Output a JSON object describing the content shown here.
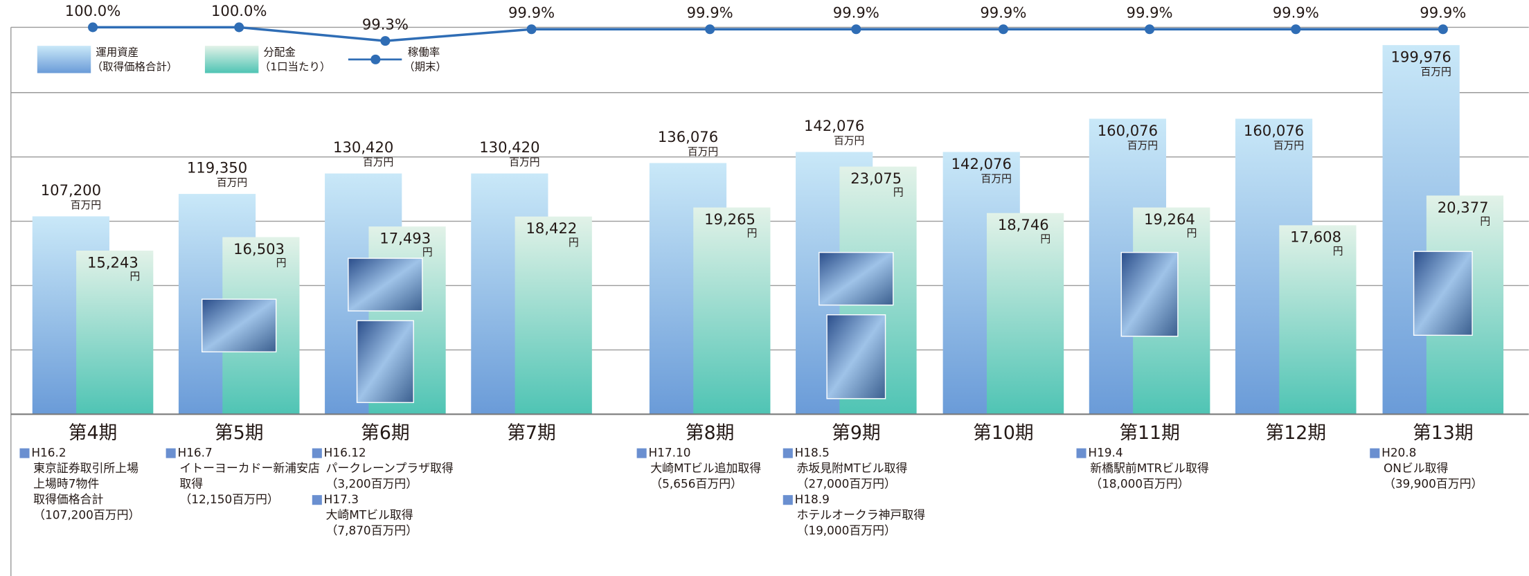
{
  "chart_data": {
    "type": "bar",
    "categories": [
      "第4期",
      "第5期",
      "第6期",
      "第7期",
      "第8期",
      "第9期",
      "第10期",
      "第11期",
      "第12期",
      "第13期"
    ],
    "ylim": [
      0,
      224400
    ],
    "y2lim": [
      0,
      38600
    ],
    "y3lim": [
      98,
      101.4
    ],
    "series": [
      {
        "name": "運用資産",
        "name_note": "（取得価格合計）",
        "unit": "百万円",
        "color": "#6a9bd8",
        "values": [
          107200,
          119350,
          130420,
          130420,
          136076,
          142076,
          142076,
          160076,
          160076,
          199976
        ],
        "value_labels": [
          "107,200",
          "119,350",
          "130,420",
          "130,420",
          "136,076",
          "142,076",
          "142,076",
          "160,076",
          "160,076",
          "199,976"
        ]
      },
      {
        "name": "分配金",
        "name_note": "（1口当たり）",
        "unit": "円",
        "color": "#4fc4b4",
        "axis": "y2",
        "values": [
          15243,
          16503,
          17493,
          18422,
          19265,
          23075,
          18746,
          19264,
          17608,
          20377
        ],
        "value_labels": [
          "15,243",
          "16,503",
          "17,493",
          "18,422",
          "19,265",
          "23,075",
          "18,746",
          "19,264",
          "17,608",
          "20,377"
        ]
      },
      {
        "name": "稼働率",
        "name_note": "（期末）",
        "type": "line",
        "color": "#2f6db5",
        "axis": "y3",
        "values": [
          100,
          100,
          99.3,
          99.9,
          99.9,
          99.9,
          99.9,
          99.9,
          99.9,
          99.9
        ],
        "value_labels": [
          "100.0%",
          "100.0%",
          "99.3%",
          "99.9%",
          "99.9%",
          "99.9%",
          "99.9%",
          "99.9%",
          "99.9%",
          "99.9%"
        ]
      }
    ],
    "notes": [
      [
        {
          "date": "H16.2",
          "lines": [
            "東京証券取引所上場",
            "上場時7物件",
            "取得価格合計",
            "（107,200百万円）"
          ]
        }
      ],
      [
        {
          "date": "H16.7",
          "lines": [
            "イトーヨーカドー新浦安店",
            "取得",
            "（12,150百万円）"
          ]
        }
      ],
      [
        {
          "date": "H16.12",
          "lines": [
            "パークレーンプラザ取得",
            "（3,200百万円）"
          ]
        },
        {
          "date": "H17.3",
          "lines": [
            "大崎MTビル取得",
            "（7,870百万円）"
          ]
        }
      ],
      [],
      [
        {
          "date": "H17.10",
          "lines": [
            "大崎MTビル追加取得",
            "（5,656百万円）"
          ]
        }
      ],
      [
        {
          "date": "H18.5",
          "lines": [
            "赤坂見附MTビル取得",
            "（27,000百万円）"
          ]
        },
        {
          "date": "H18.9",
          "lines": [
            "ホテルオークラ神戸取得",
            "（19,000百万円）"
          ]
        }
      ],
      [],
      [
        {
          "date": "H19.4",
          "lines": [
            "新橋駅前MTRビル取得",
            "（18,000百万円）"
          ]
        }
      ],
      [],
      [
        {
          "date": "H20.8",
          "lines": [
            "ONビル取得",
            "（39,900百万円）"
          ]
        }
      ]
    ]
  }
}
